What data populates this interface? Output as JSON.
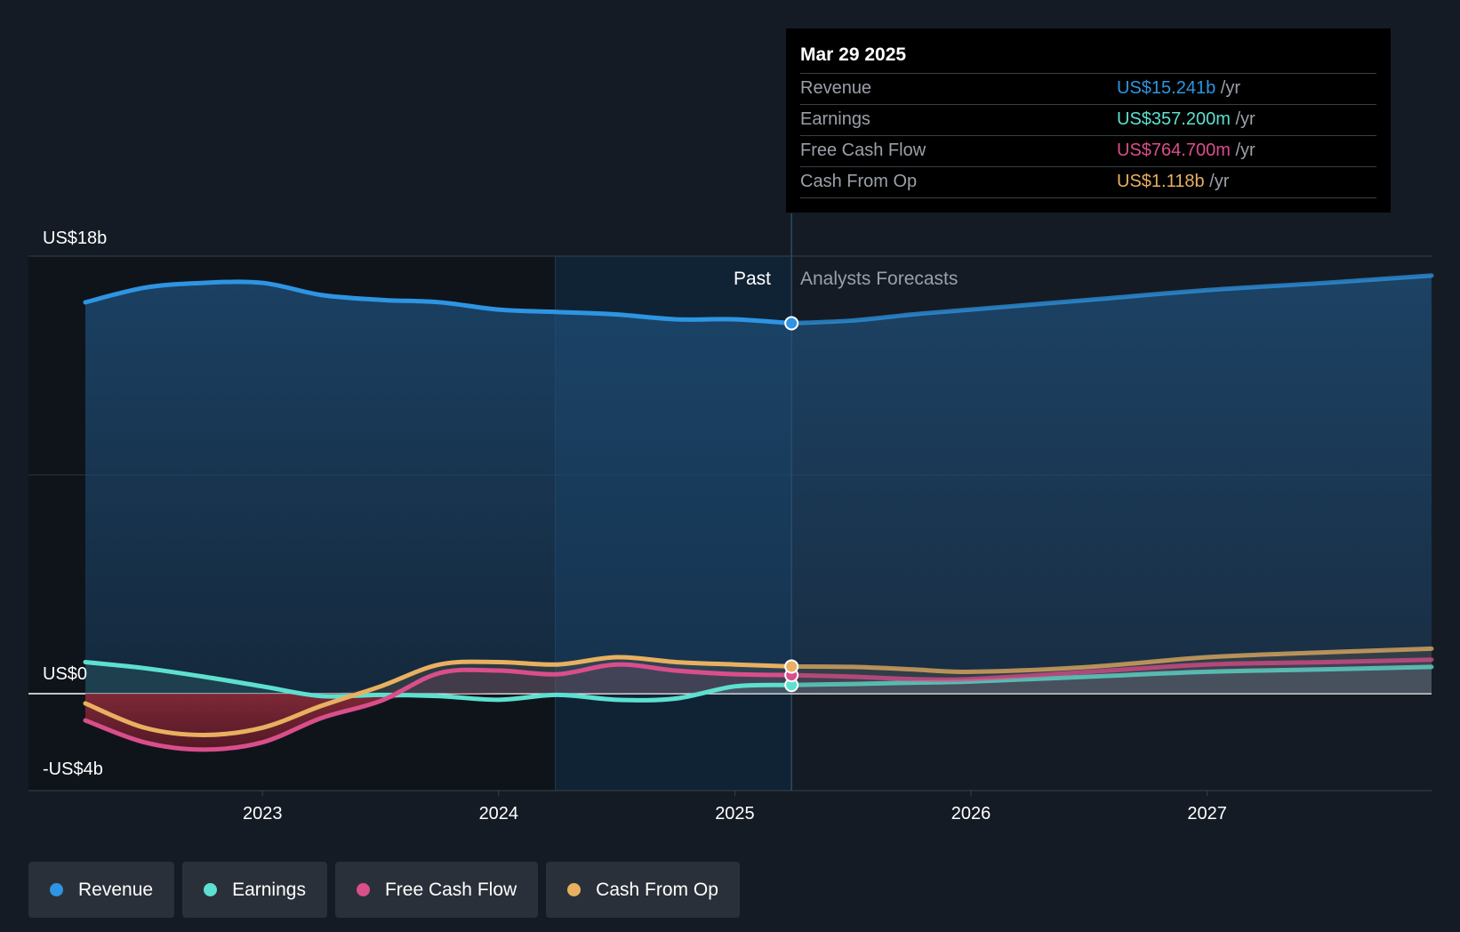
{
  "tooltip": {
    "date": "Mar 29 2025",
    "rows": [
      {
        "label": "Revenue",
        "value": "US$15.241b",
        "unit": "/yr",
        "color": "#2d95e3"
      },
      {
        "label": "Earnings",
        "value": "US$357.200m",
        "unit": "/yr",
        "color": "#5de0cf"
      },
      {
        "label": "Free Cash Flow",
        "value": "US$764.700m",
        "unit": "/yr",
        "color": "#d94e8b"
      },
      {
        "label": "Cash From Op",
        "value": "US$1.118b",
        "unit": "/yr",
        "color": "#e8b060"
      }
    ]
  },
  "legend": [
    {
      "label": "Revenue",
      "color": "#2d95e3"
    },
    {
      "label": "Earnings",
      "color": "#5de0cf"
    },
    {
      "label": "Free Cash Flow",
      "color": "#d94e8b"
    },
    {
      "label": "Cash From Op",
      "color": "#e8b060"
    }
  ],
  "sections": {
    "past": "Past",
    "forecast": "Analysts Forecasts"
  },
  "chart_data": {
    "type": "line",
    "y_tick_labels": [
      "US$18b",
      "US$0",
      "-US$4b"
    ],
    "x_tick_labels": [
      "2023",
      "2024",
      "2025",
      "2026",
      "2027"
    ],
    "ylim": [
      -4,
      18
    ],
    "y_unit": "billions USD",
    "xlim": [
      2022.25,
      2027.95
    ],
    "divider_x": 2025.24,
    "highlight_start_x": 2024.24,
    "series": [
      {
        "name": "Revenue",
        "color": "#2d95e3",
        "x": [
          2022.25,
          2022.5,
          2022.75,
          2023.0,
          2023.25,
          2023.5,
          2023.75,
          2024.0,
          2024.25,
          2024.5,
          2024.75,
          2025.0,
          2025.24,
          2025.5,
          2025.75,
          2026.0,
          2026.5,
          2027.0,
          2027.5,
          2027.95
        ],
        "y": [
          16.1,
          16.7,
          16.9,
          16.9,
          16.4,
          16.2,
          16.1,
          15.8,
          15.7,
          15.6,
          15.4,
          15.4,
          15.24,
          15.35,
          15.6,
          15.8,
          16.2,
          16.6,
          16.9,
          17.2
        ]
      },
      {
        "name": "Earnings",
        "color": "#5de0cf",
        "x": [
          2022.25,
          2022.5,
          2022.75,
          2023.0,
          2023.25,
          2023.5,
          2023.75,
          2024.0,
          2024.25,
          2024.5,
          2024.75,
          2025.0,
          2025.24,
          2025.5,
          2025.75,
          2026.0,
          2026.5,
          2027.0,
          2027.5,
          2027.95
        ],
        "y": [
          1.3,
          1.05,
          0.7,
          0.3,
          -0.1,
          -0.05,
          -0.1,
          -0.25,
          -0.05,
          -0.25,
          -0.2,
          0.3,
          0.357,
          0.4,
          0.45,
          0.5,
          0.7,
          0.9,
          1.0,
          1.1
        ]
      },
      {
        "name": "Free Cash Flow",
        "color": "#d94e8b",
        "x": [
          2022.25,
          2022.5,
          2022.75,
          2023.0,
          2023.25,
          2023.5,
          2023.75,
          2024.0,
          2024.25,
          2024.5,
          2024.75,
          2025.0,
          2025.24,
          2025.5,
          2025.75,
          2026.0,
          2026.5,
          2027.0,
          2027.5,
          2027.95
        ],
        "y": [
          -1.1,
          -2.0,
          -2.3,
          -2.0,
          -1.0,
          -0.3,
          0.85,
          0.95,
          0.8,
          1.2,
          0.95,
          0.8,
          0.7647,
          0.7,
          0.6,
          0.6,
          0.9,
          1.2,
          1.3,
          1.4
        ]
      },
      {
        "name": "Cash From Op",
        "color": "#e8b060",
        "x": [
          2022.25,
          2022.5,
          2022.75,
          2023.0,
          2023.25,
          2023.5,
          2023.75,
          2024.0,
          2024.25,
          2024.5,
          2024.75,
          2025.0,
          2025.24,
          2025.5,
          2025.75,
          2026.0,
          2026.5,
          2027.0,
          2027.5,
          2027.95
        ],
        "y": [
          -0.4,
          -1.4,
          -1.7,
          -1.4,
          -0.5,
          0.3,
          1.2,
          1.3,
          1.2,
          1.5,
          1.3,
          1.2,
          1.118,
          1.1,
          1.0,
          0.9,
          1.1,
          1.5,
          1.7,
          1.85
        ]
      }
    ]
  }
}
